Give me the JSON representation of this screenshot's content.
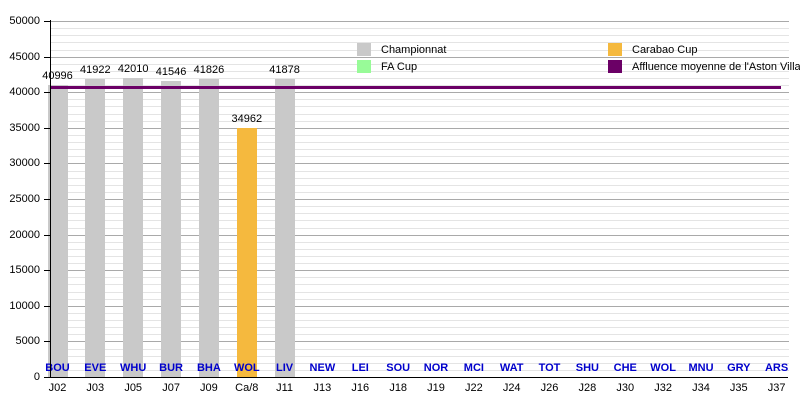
{
  "chart_data": {
    "type": "bar",
    "title": "",
    "xlabel": "",
    "ylabel": "",
    "ylim": [
      0,
      50000
    ],
    "y_major_step": 5000,
    "y_minor_step": 1000,
    "grid": "on",
    "legend_position": "top",
    "x_label_color": "#0000cc",
    "bars": [
      {
        "opponent": "BOU",
        "matchday": "J02",
        "value": 40996,
        "competition": "championnat"
      },
      {
        "opponent": "EVE",
        "matchday": "J03",
        "value": 41922,
        "competition": "championnat"
      },
      {
        "opponent": "WHU",
        "matchday": "J05",
        "value": 42010,
        "competition": "championnat"
      },
      {
        "opponent": "BUR",
        "matchday": "J07",
        "value": 41546,
        "competition": "championnat"
      },
      {
        "opponent": "BHA",
        "matchday": "J09",
        "value": 41826,
        "competition": "championnat"
      },
      {
        "opponent": "WOL",
        "matchday": "Ca/8",
        "value": 34962,
        "competition": "carabao_cup"
      },
      {
        "opponent": "LIV",
        "matchday": "J11",
        "value": 41878,
        "competition": "championnat"
      },
      {
        "opponent": "NEW",
        "matchday": "J13",
        "value": null,
        "competition": null
      },
      {
        "opponent": "LEI",
        "matchday": "J16",
        "value": null,
        "competition": null
      },
      {
        "opponent": "SOU",
        "matchday": "J18",
        "value": null,
        "competition": null
      },
      {
        "opponent": "NOR",
        "matchday": "J19",
        "value": null,
        "competition": null
      },
      {
        "opponent": "MCI",
        "matchday": "J22",
        "value": null,
        "competition": null
      },
      {
        "opponent": "WAT",
        "matchday": "J24",
        "value": null,
        "competition": null
      },
      {
        "opponent": "TOT",
        "matchday": "J26",
        "value": null,
        "competition": null
      },
      {
        "opponent": "SHU",
        "matchday": "J28",
        "value": null,
        "competition": null
      },
      {
        "opponent": "CHE",
        "matchday": "J30",
        "value": null,
        "competition": null
      },
      {
        "opponent": "WOL",
        "matchday": "J32",
        "value": null,
        "competition": null
      },
      {
        "opponent": "MNU",
        "matchday": "J34",
        "value": null,
        "competition": null
      },
      {
        "opponent": "GRY",
        "matchday": "J35",
        "value": null,
        "competition": null
      },
      {
        "opponent": "ARS",
        "matchday": "J37",
        "value": null,
        "competition": null
      }
    ],
    "average_line": {
      "label": "Affluence moyenne de l'Aston Villa FC",
      "value": 40734,
      "color": "#6b0066"
    },
    "legend": [
      {
        "key": "championnat",
        "label": "Championnat",
        "color": "#c9c9c9"
      },
      {
        "key": "fa_cup",
        "label": "FA Cup",
        "color": "#98fb98"
      },
      {
        "key": "carabao_cup",
        "label": "Carabao Cup",
        "color": "#f5b93e"
      },
      {
        "key": "average_line",
        "label": "Affluence moyenne de l'Aston Villa FC",
        "color": "#6b0066"
      }
    ],
    "colors": {
      "gridline_major": "#a9a9a9",
      "gridline_minor": "#e4e4e4",
      "axis": "#000000",
      "x_label_blue": "#0000cc",
      "value_label": "#000000"
    }
  }
}
